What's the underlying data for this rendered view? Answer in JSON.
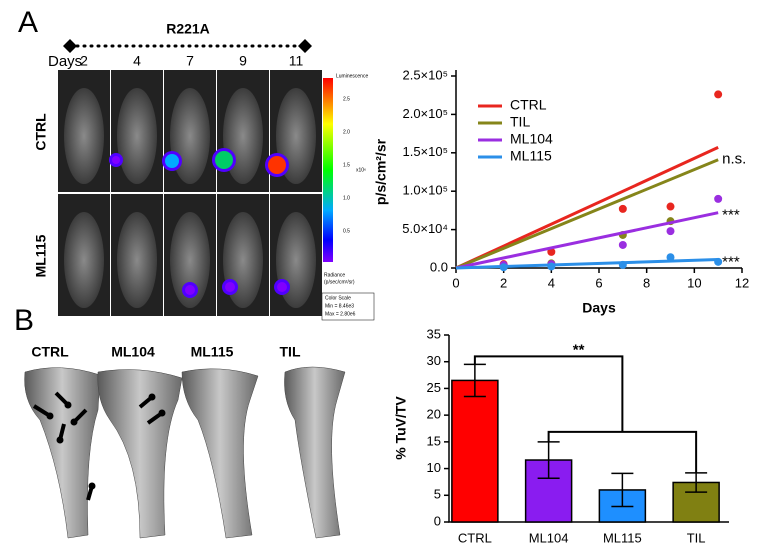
{
  "figure": {
    "panel_a_label": "A",
    "panel_b_label": "B",
    "imaging": {
      "title": "R221A",
      "days_label": "Days",
      "days": [
        2,
        4,
        7,
        9,
        11
      ],
      "rows": [
        "CTRL",
        "ML115"
      ],
      "colorbar": {
        "title": "Luminescence",
        "ticks": [
          "2.5",
          "2.0",
          "1.5",
          "1.0",
          "0.5"
        ],
        "unit": "x10⁶",
        "radiance": "Radiance",
        "radiance_unit": "(p/sec/cm²/sr)",
        "scale_title": "Color Scale",
        "min": "Min = 8.46e3",
        "max": "Max = 2.80e6"
      }
    },
    "bone_labels": [
      "CTRL",
      "ML104",
      "ML115",
      "TIL"
    ]
  },
  "chart_data": [
    {
      "type": "scatter",
      "xlabel": "Days",
      "ylabel": "p/s/cm²/sr",
      "x": [
        2,
        4,
        7,
        9,
        11
      ],
      "xlim": [
        0,
        12
      ],
      "xticks": [
        0,
        2,
        4,
        6,
        8,
        10,
        12
      ],
      "ylim": [
        0,
        250000
      ],
      "yticks": [
        {
          "value": 0,
          "label": "0.0"
        },
        {
          "value": 50000,
          "label": "5.0×10⁴"
        },
        {
          "value": 100000,
          "label": "1.0×10⁵"
        },
        {
          "value": 150000,
          "label": "1.5×10⁵"
        },
        {
          "value": 200000,
          "label": "2.0×10⁵"
        },
        {
          "value": 250000,
          "label": "2.5×10⁵"
        }
      ],
      "legend": "upper left",
      "series": [
        {
          "name": "CTRL",
          "color": "#e8261f",
          "values": [
            5000,
            21000,
            77000,
            80000,
            226000
          ],
          "fit": {
            "x": [
              0,
              11
            ],
            "values": [
              0,
              157000
            ]
          }
        },
        {
          "name": "TIL",
          "color": "#85851a",
          "values": [
            3000,
            6000,
            43000,
            61000,
            null
          ],
          "fit": {
            "x": [
              0,
              11
            ],
            "values": [
              0,
              141000
            ]
          },
          "significance": "n.s."
        },
        {
          "name": "ML104",
          "color": "#9a2ee0",
          "values": [
            4000,
            5000,
            30000,
            48000,
            90000
          ],
          "fit": {
            "x": [
              0,
              11
            ],
            "values": [
              0,
              72000
            ]
          },
          "significance": "***"
        },
        {
          "name": "ML115",
          "color": "#2b8fe8",
          "values": [
            1000,
            2000,
            4000,
            14000,
            8000
          ],
          "fit": {
            "x": [
              0,
              11
            ],
            "values": [
              0,
              11000
            ]
          },
          "significance": "***"
        }
      ]
    },
    {
      "type": "bar",
      "ylabel": "% TuV/TV",
      "categories": [
        "CTRL",
        "ML104",
        "ML115",
        "TIL"
      ],
      "values": [
        26.5,
        11.6,
        6.0,
        7.4
      ],
      "errors": [
        3.0,
        3.4,
        3.1,
        1.8
      ],
      "colors": [
        "#ff0000",
        "#8a1cf0",
        "#1e8fff",
        "#808012"
      ],
      "ylim": [
        0,
        35
      ],
      "yticks": [
        0,
        5,
        10,
        15,
        20,
        25,
        30,
        35
      ],
      "annotation": "**"
    }
  ]
}
